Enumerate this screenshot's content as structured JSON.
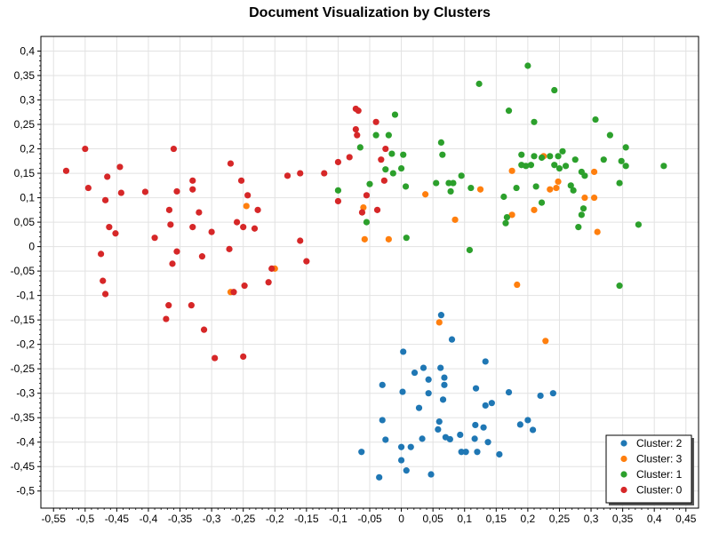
{
  "chart_data": {
    "type": "scatter",
    "title": "Document Visualization by Clusters",
    "xlabel": "",
    "ylabel": "",
    "xlim": [
      -0.57,
      0.47
    ],
    "ylim": [
      -0.535,
      0.43
    ],
    "x_ticks": [
      -0.55,
      -0.5,
      -0.45,
      -0.4,
      -0.35,
      -0.3,
      -0.25,
      -0.2,
      -0.15,
      -0.1,
      -0.05,
      0,
      0.05,
      0.1,
      0.15,
      0.2,
      0.25,
      0.3,
      0.35,
      0.4,
      0.45
    ],
    "x_tick_labels": [
      "-0,55",
      "-0,5",
      "-0,45",
      "-0,4",
      "-0,35",
      "-0,3",
      "-0,25",
      "-0,2",
      "-0,15",
      "-0,1",
      "-0,05",
      "0",
      "0,05",
      "0,1",
      "0,15",
      "0,2",
      "0,25",
      "0,3",
      "0,35",
      "0,4",
      "0,45"
    ],
    "y_ticks": [
      0.4,
      0.35,
      0.3,
      0.25,
      0.2,
      0.15,
      0.1,
      0.05,
      0,
      -0.05,
      -0.1,
      -0.15,
      -0.2,
      -0.25,
      -0.3,
      -0.35,
      -0.4,
      -0.45,
      -0.5
    ],
    "y_tick_labels": [
      "0,4",
      "0,35",
      "0,3",
      "0,25",
      "0,2",
      "0,15",
      "0,1",
      "0,05",
      "0",
      "-0,05",
      "-0,1",
      "-0,15",
      "-0,2",
      "-0,25",
      "-0,3",
      "-0,35",
      "-0,4",
      "-0,45",
      "-0,5"
    ],
    "grid": true,
    "legend_position": "bottom-right",
    "series": [
      {
        "name": "Cluster: 2",
        "color": "#1f77b4",
        "points": [
          [
            0.063,
            -0.14
          ],
          [
            0.08,
            -0.19
          ],
          [
            0.003,
            -0.215
          ],
          [
            0.133,
            -0.235
          ],
          [
            0.035,
            -0.248
          ],
          [
            0.062,
            -0.248
          ],
          [
            0.021,
            -0.258
          ],
          [
            0.068,
            -0.268
          ],
          [
            -0.03,
            -0.283
          ],
          [
            0.043,
            -0.272
          ],
          [
            0.068,
            -0.283
          ],
          [
            0.118,
            -0.29
          ],
          [
            0.002,
            -0.297
          ],
          [
            0.17,
            -0.298
          ],
          [
            0.043,
            -0.3
          ],
          [
            0.24,
            -0.3
          ],
          [
            0.22,
            -0.305
          ],
          [
            0.066,
            -0.313
          ],
          [
            0.143,
            -0.32
          ],
          [
            0.133,
            -0.325
          ],
          [
            0.028,
            -0.33
          ],
          [
            -0.03,
            -0.355
          ],
          [
            0.06,
            -0.358
          ],
          [
            0.2,
            -0.355
          ],
          [
            0.13,
            -0.37
          ],
          [
            0.117,
            -0.365
          ],
          [
            0.058,
            -0.374
          ],
          [
            0.188,
            -0.364
          ],
          [
            0.07,
            -0.39
          ],
          [
            0.093,
            -0.385
          ],
          [
            0.208,
            -0.375
          ],
          [
            -0.025,
            -0.395
          ],
          [
            0.033,
            -0.393
          ],
          [
            0.077,
            -0.394
          ],
          [
            0.116,
            -0.393
          ],
          [
            0.0,
            -0.41
          ],
          [
            0.015,
            -0.41
          ],
          [
            0.137,
            -0.4
          ],
          [
            -0.063,
            -0.42
          ],
          [
            0.095,
            -0.42
          ],
          [
            0.102,
            -0.42
          ],
          [
            0.12,
            -0.42
          ],
          [
            0.155,
            -0.425
          ],
          [
            0.0,
            -0.437
          ],
          [
            0.008,
            -0.458
          ],
          [
            0.047,
            -0.466
          ],
          [
            -0.035,
            -0.472
          ]
        ]
      },
      {
        "name": "Cluster: 3",
        "color": "#ff7f0e",
        "points": [
          [
            -0.245,
            0.083
          ],
          [
            -0.2,
            -0.045
          ],
          [
            -0.27,
            -0.093
          ],
          [
            -0.06,
            0.08
          ],
          [
            -0.058,
            0.015
          ],
          [
            -0.02,
            0.015
          ],
          [
            0.038,
            0.107
          ],
          [
            0.085,
            0.055
          ],
          [
            0.125,
            0.117
          ],
          [
            0.175,
            0.155
          ],
          [
            0.175,
            0.065
          ],
          [
            0.183,
            -0.078
          ],
          [
            0.21,
            0.075
          ],
          [
            0.225,
            0.185
          ],
          [
            0.235,
            0.117
          ],
          [
            0.245,
            0.12
          ],
          [
            0.248,
            0.133
          ],
          [
            0.29,
            0.1
          ],
          [
            0.305,
            0.153
          ],
          [
            0.305,
            0.1
          ],
          [
            0.31,
            0.03
          ],
          [
            0.06,
            -0.155
          ],
          [
            0.228,
            -0.193
          ]
        ]
      },
      {
        "name": "Cluster: 1",
        "color": "#2ca02c",
        "points": [
          [
            0.2,
            0.37
          ],
          [
            0.123,
            0.333
          ],
          [
            0.242,
            0.32
          ],
          [
            0.17,
            0.278
          ],
          [
            0.21,
            0.255
          ],
          [
            -0.01,
            0.27
          ],
          [
            0.307,
            0.26
          ],
          [
            -0.04,
            0.228
          ],
          [
            -0.02,
            0.228
          ],
          [
            0.063,
            0.213
          ],
          [
            0.33,
            0.228
          ],
          [
            0.355,
            0.203
          ],
          [
            -0.065,
            0.203
          ],
          [
            -0.015,
            0.19
          ],
          [
            0.003,
            0.188
          ],
          [
            0.065,
            0.188
          ],
          [
            0.19,
            0.188
          ],
          [
            0.21,
            0.185
          ],
          [
            0.222,
            0.182
          ],
          [
            0.235,
            0.185
          ],
          [
            0.248,
            0.185
          ],
          [
            0.255,
            0.195
          ],
          [
            0.26,
            0.165
          ],
          [
            0.275,
            0.178
          ],
          [
            0.32,
            0.178
          ],
          [
            0.348,
            0.175
          ],
          [
            0.355,
            0.165
          ],
          [
            0.415,
            0.165
          ],
          [
            0.19,
            0.167
          ],
          [
            0.197,
            0.165
          ],
          [
            0.205,
            0.167
          ],
          [
            0.242,
            0.167
          ],
          [
            0.25,
            0.16
          ],
          [
            -0.025,
            0.158
          ],
          [
            0.0,
            0.16
          ],
          [
            -0.013,
            0.15
          ],
          [
            0.285,
            0.153
          ],
          [
            0.29,
            0.145
          ],
          [
            0.095,
            0.145
          ],
          [
            0.055,
            0.13
          ],
          [
            0.075,
            0.13
          ],
          [
            0.082,
            0.13
          ],
          [
            0.11,
            0.12
          ],
          [
            0.007,
            0.123
          ],
          [
            0.268,
            0.125
          ],
          [
            0.345,
            0.13
          ],
          [
            0.213,
            0.123
          ],
          [
            0.162,
            0.102
          ],
          [
            -0.1,
            0.115
          ],
          [
            -0.05,
            0.128
          ],
          [
            0.078,
            0.113
          ],
          [
            0.182,
            0.12
          ],
          [
            0.222,
            0.09
          ],
          [
            0.272,
            0.115
          ],
          [
            0.288,
            0.078
          ],
          [
            0.285,
            0.065
          ],
          [
            0.167,
            0.06
          ],
          [
            0.165,
            0.048
          ],
          [
            0.28,
            0.04
          ],
          [
            0.375,
            0.045
          ],
          [
            -0.055,
            0.05
          ],
          [
            0.008,
            0.018
          ],
          [
            0.108,
            -0.007
          ],
          [
            0.345,
            -0.08
          ]
        ]
      },
      {
        "name": "Cluster: 0",
        "color": "#d62728",
        "points": [
          [
            -0.072,
            0.282
          ],
          [
            -0.068,
            0.278
          ],
          [
            -0.04,
            0.255
          ],
          [
            -0.072,
            0.24
          ],
          [
            -0.07,
            0.228
          ],
          [
            -0.082,
            0.183
          ],
          [
            -0.025,
            0.2
          ],
          [
            -0.1,
            0.173
          ],
          [
            -0.032,
            0.178
          ],
          [
            -0.027,
            0.135
          ],
          [
            -0.122,
            0.15
          ],
          [
            -0.16,
            0.15
          ],
          [
            -0.18,
            0.145
          ],
          [
            -0.055,
            0.105
          ],
          [
            -0.1,
            0.093
          ],
          [
            -0.062,
            0.07
          ],
          [
            -0.038,
            0.075
          ],
          [
            -0.5,
            0.2
          ],
          [
            -0.36,
            0.2
          ],
          [
            -0.53,
            0.155
          ],
          [
            -0.445,
            0.163
          ],
          [
            -0.465,
            0.143
          ],
          [
            -0.27,
            0.17
          ],
          [
            -0.253,
            0.135
          ],
          [
            -0.495,
            0.12
          ],
          [
            -0.443,
            0.11
          ],
          [
            -0.405,
            0.112
          ],
          [
            -0.355,
            0.113
          ],
          [
            -0.33,
            0.135
          ],
          [
            -0.33,
            0.117
          ],
          [
            -0.243,
            0.105
          ],
          [
            -0.468,
            0.095
          ],
          [
            -0.367,
            0.075
          ],
          [
            -0.32,
            0.07
          ],
          [
            -0.26,
            0.05
          ],
          [
            -0.25,
            0.04
          ],
          [
            -0.232,
            0.037
          ],
          [
            -0.462,
            0.04
          ],
          [
            -0.452,
            0.027
          ],
          [
            -0.365,
            0.045
          ],
          [
            -0.33,
            0.04
          ],
          [
            -0.3,
            0.03
          ],
          [
            -0.39,
            0.018
          ],
          [
            -0.227,
            0.075
          ],
          [
            -0.16,
            0.012
          ],
          [
            -0.475,
            -0.015
          ],
          [
            -0.355,
            -0.01
          ],
          [
            -0.315,
            -0.02
          ],
          [
            -0.272,
            -0.005
          ],
          [
            -0.362,
            -0.035
          ],
          [
            -0.15,
            -0.03
          ],
          [
            -0.205,
            -0.045
          ],
          [
            -0.472,
            -0.07
          ],
          [
            -0.468,
            -0.097
          ],
          [
            -0.265,
            -0.093
          ],
          [
            -0.248,
            -0.08
          ],
          [
            -0.21,
            -0.073
          ],
          [
            -0.368,
            -0.12
          ],
          [
            -0.332,
            -0.12
          ],
          [
            -0.372,
            -0.148
          ],
          [
            -0.312,
            -0.17
          ],
          [
            -0.295,
            -0.228
          ],
          [
            -0.25,
            -0.225
          ]
        ]
      }
    ],
    "legend_order": [
      "Cluster: 2",
      "Cluster: 3",
      "Cluster: 1",
      "Cluster: 0"
    ]
  }
}
